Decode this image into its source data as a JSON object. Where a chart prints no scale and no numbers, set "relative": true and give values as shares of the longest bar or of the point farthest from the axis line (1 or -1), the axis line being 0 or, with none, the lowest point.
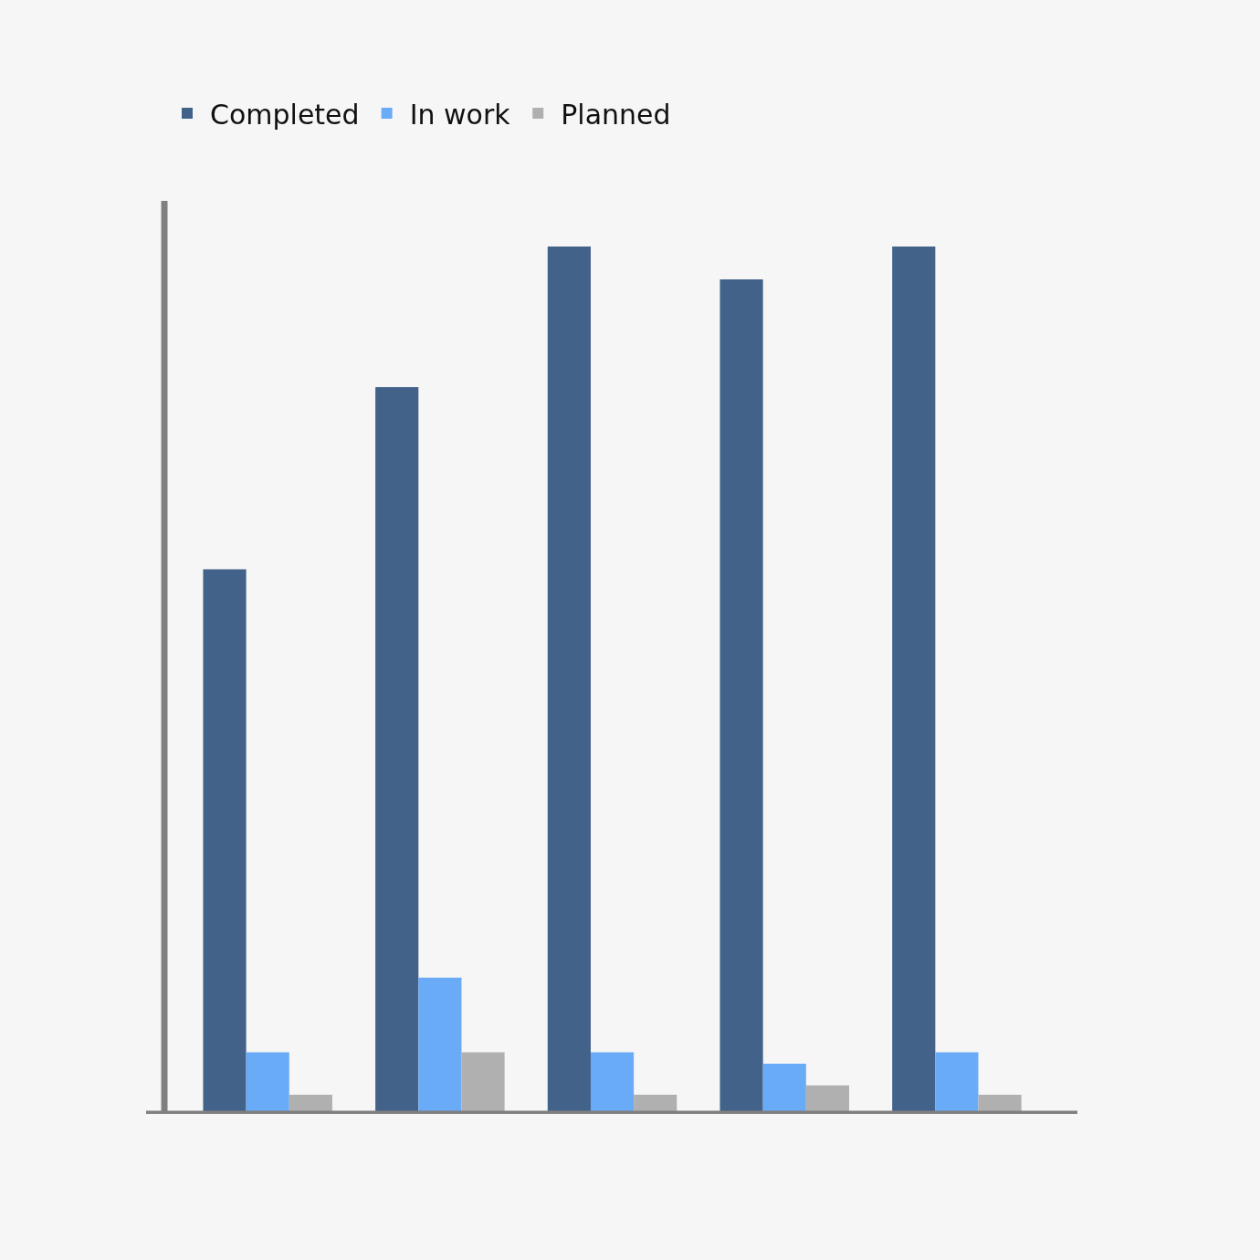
{
  "chart_data": {
    "type": "bar",
    "relative": true,
    "categories": [
      null,
      null,
      null,
      null,
      null
    ],
    "series": [
      {
        "name": "Completed",
        "color": "#42628a",
        "values": [
          0.628,
          0.838,
          1,
          0.962,
          1
        ]
      },
      {
        "name": "In work",
        "color": "#6aabf7",
        "values": [
          0.071,
          0.157,
          0.071,
          0.058,
          0.071
        ]
      },
      {
        "name": "Planned",
        "color": "#b0b0b0",
        "values": [
          0.022,
          0.071,
          0.022,
          0.033,
          0.022
        ]
      }
    ],
    "legend": "top left"
  }
}
